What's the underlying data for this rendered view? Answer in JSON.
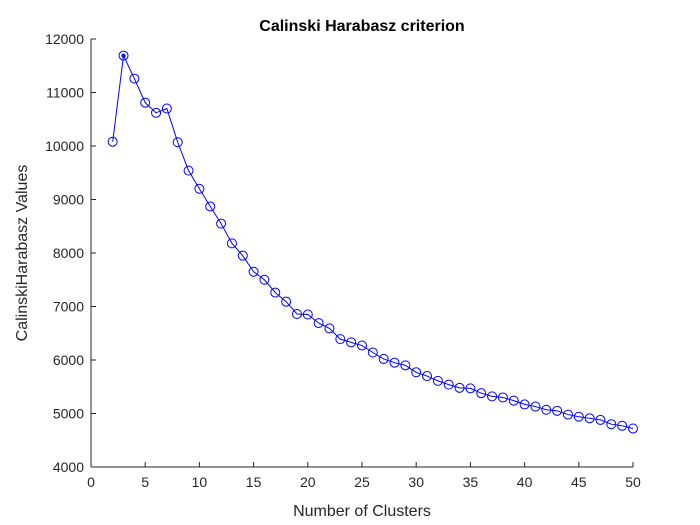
{
  "chart_data": {
    "type": "line",
    "title": "Calinski Harabasz criterion",
    "xlabel": "Number of Clusters",
    "ylabel": "CalinskiHarabasz Values",
    "xlim": [
      0,
      50
    ],
    "ylim": [
      4000,
      12000
    ],
    "xticks": [
      0,
      5,
      10,
      15,
      20,
      25,
      30,
      35,
      40,
      45,
      50
    ],
    "yticks": [
      4000,
      5000,
      6000,
      7000,
      8000,
      9000,
      10000,
      11000,
      12000
    ],
    "grid": false,
    "series_color": "#0000ff",
    "axis_color": "#262626",
    "marker": "circle",
    "highlighted_point": {
      "x": 3,
      "y": 11690
    },
    "series": [
      {
        "x": [
          2,
          3,
          4,
          5,
          6,
          7,
          8,
          9,
          10,
          11,
          12,
          13,
          14,
          15,
          16,
          17,
          18,
          19,
          20,
          21,
          22,
          23,
          24,
          25,
          26,
          27,
          28,
          29,
          30,
          31,
          32,
          33,
          34,
          35,
          36,
          37,
          38,
          39,
          40,
          41,
          42,
          43,
          44,
          45,
          46,
          47,
          48,
          49,
          50
        ],
        "values": [
          10080,
          11690,
          11260,
          10810,
          10620,
          10700,
          10070,
          9540,
          9200,
          8870,
          8550,
          8180,
          7950,
          7650,
          7500,
          7260,
          7090,
          6860,
          6850,
          6690,
          6590,
          6390,
          6330,
          6270,
          6140,
          6020,
          5950,
          5900,
          5770,
          5700,
          5610,
          5540,
          5480,
          5470,
          5380,
          5320,
          5300,
          5240,
          5170,
          5130,
          5070,
          5050,
          4980,
          4940,
          4910,
          4880,
          4800,
          4770,
          4720
        ]
      }
    ]
  }
}
